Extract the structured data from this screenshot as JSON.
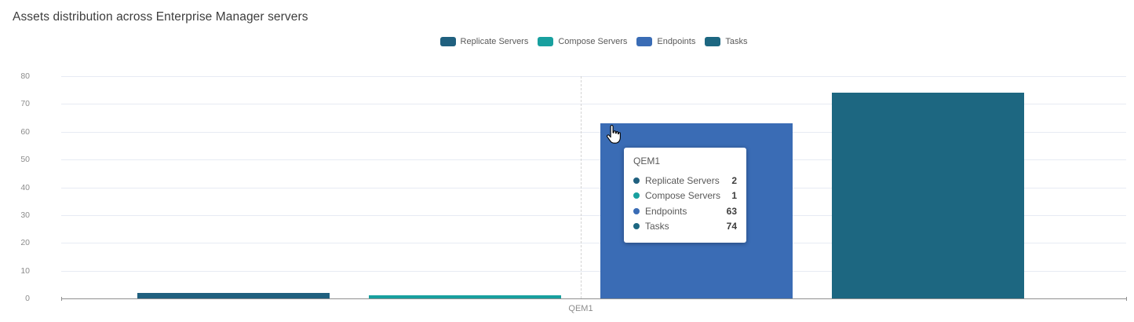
{
  "title": "Assets distribution across Enterprise Manager servers",
  "x_axis_label": "QEM1",
  "colors": {
    "replicate_servers": "#20607f",
    "compose_servers": "#18a09f",
    "endpoints": "#3a6cb5",
    "tasks": "#1d6781",
    "gridline": "#e7ebf3",
    "axis_line": "#8f8f8f",
    "tick_label": "#8c8c8c"
  },
  "chart_data": {
    "type": "bar",
    "title": "Assets distribution across Enterprise Manager servers",
    "categories": [
      "QEM1"
    ],
    "series": [
      {
        "name": "Replicate Servers",
        "values": [
          2
        ],
        "color": "#20607f"
      },
      {
        "name": "Compose Servers",
        "values": [
          1
        ],
        "color": "#18a09f"
      },
      {
        "name": "Endpoints",
        "values": [
          63
        ],
        "color": "#3a6cb5"
      },
      {
        "name": "Tasks",
        "values": [
          74
        ],
        "color": "#1d6781"
      }
    ],
    "ylim": [
      0,
      80
    ],
    "yticks": [
      0,
      10,
      20,
      30,
      40,
      50,
      60,
      70,
      80
    ],
    "grid": "horizontal",
    "legend_position": "top-center",
    "hover_category_line": "dashed"
  },
  "tooltip": {
    "title": "QEM1",
    "rows": [
      {
        "label": "Replicate Servers",
        "value": "2"
      },
      {
        "label": "Compose Servers",
        "value": "1"
      },
      {
        "label": "Endpoints",
        "value": "63"
      },
      {
        "label": "Tasks",
        "value": "74"
      }
    ]
  }
}
